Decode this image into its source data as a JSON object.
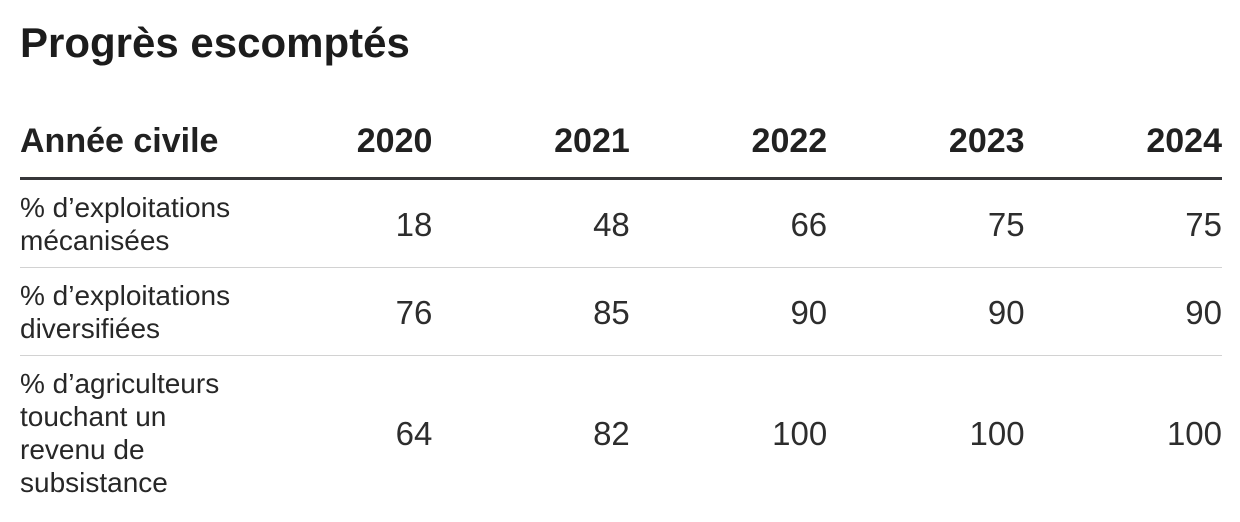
{
  "title": "Progrès escomptés",
  "table": {
    "header": {
      "label": "Année civile",
      "years": [
        "2020",
        "2021",
        "2022",
        "2023",
        "2024"
      ]
    },
    "rows": [
      {
        "label": "% d’exploitations mécanisées",
        "values": [
          "18",
          "48",
          "66",
          "75",
          "75"
        ]
      },
      {
        "label": "% d’exploitations diversifiées",
        "values": [
          "76",
          "85",
          "90",
          "90",
          "90"
        ]
      },
      {
        "label": "% d’agriculteurs touchant un revenu de subsistance",
        "values": [
          "64",
          "82",
          "100",
          "100",
          "100"
        ]
      }
    ]
  },
  "colors": {
    "text": "#212121",
    "header_rule": "#36363a",
    "row_rule": "#d2d2d2",
    "background": "#ffffff"
  },
  "chart_data": {
    "type": "table",
    "title": "Progrès escomptés",
    "row_header": "Année civile",
    "categories": [
      "2020",
      "2021",
      "2022",
      "2023",
      "2024"
    ],
    "series": [
      {
        "name": "% d’exploitations mécanisées",
        "values": [
          18,
          48,
          66,
          75,
          75
        ]
      },
      {
        "name": "% d’exploitations diversifiées",
        "values": [
          76,
          85,
          90,
          90,
          90
        ]
      },
      {
        "name": "% d’agriculteurs touchant un revenu de subsistance",
        "values": [
          64,
          82,
          100,
          100,
          100
        ]
      }
    ],
    "layout": {
      "grid": "horizontal-rules-only",
      "value_alignment": "right",
      "header_weight": "bold"
    }
  }
}
